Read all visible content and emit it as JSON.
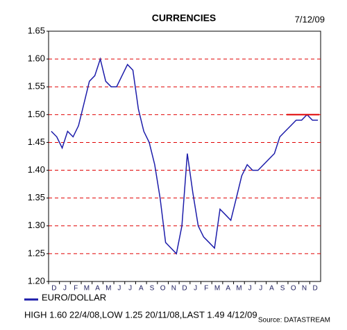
{
  "chart_data": {
    "type": "line",
    "title": "CURRENCIES",
    "date": "7/12/09",
    "categories": [
      "D",
      null,
      "J",
      null,
      "F",
      null,
      "M",
      null,
      "A",
      null,
      "M",
      null,
      "J",
      null,
      "J",
      null,
      "A",
      null,
      "S",
      null,
      "O",
      null,
      "N",
      null,
      "D",
      null,
      "J",
      null,
      "F",
      null,
      "M",
      null,
      "A",
      null,
      "M",
      null,
      "J",
      null,
      "J",
      null,
      "A",
      null,
      "S",
      null,
      "O",
      null,
      "N",
      null,
      "D",
      null
    ],
    "series": [
      {
        "name": "EURO/DOLLAR",
        "color": "#1c1caa",
        "values": [
          1.47,
          1.46,
          1.44,
          1.47,
          1.46,
          1.48,
          1.52,
          1.56,
          1.57,
          1.6,
          1.56,
          1.55,
          1.55,
          1.57,
          1.59,
          1.58,
          1.51,
          1.47,
          1.45,
          1.41,
          1.35,
          1.27,
          1.26,
          1.25,
          1.3,
          1.43,
          1.36,
          1.3,
          1.28,
          1.27,
          1.26,
          1.33,
          1.32,
          1.31,
          1.35,
          1.39,
          1.41,
          1.4,
          1.4,
          1.41,
          1.42,
          1.43,
          1.46,
          1.47,
          1.48,
          1.49,
          1.49,
          1.5,
          1.49,
          1.49
        ]
      }
    ],
    "ylim": [
      1.2,
      1.65
    ],
    "yticks": [
      {
        "value": 1.2,
        "label": "1.20"
      },
      1.25,
      {
        "value": 1.3,
        "label": "1.30"
      },
      1.35,
      {
        "value": 1.4,
        "label": "1.40"
      },
      1.45,
      {
        "value": 1.5,
        "label": "1.50"
      },
      1.55,
      {
        "value": 1.6,
        "label": "1.60"
      },
      1.65
    ],
    "grid": true,
    "grid_color": "#e00000",
    "reference_line": {
      "value": 1.5,
      "color": "#e00000"
    },
    "footer": "HIGH 1.60 22/4/08,LOW 1.25 20/11/08,LAST 1.49 4/12/09",
    "source": "Source: DATASTREAM"
  }
}
